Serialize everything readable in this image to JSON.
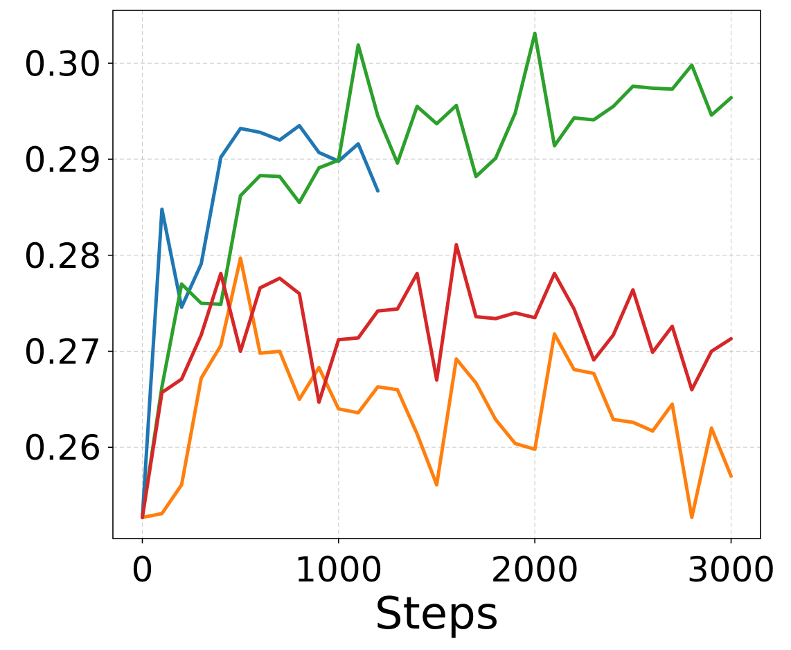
{
  "chart_data": {
    "type": "line",
    "title": "",
    "xlabel": "Steps",
    "ylabel": "",
    "xlim": [
      -150,
      3150
    ],
    "ylim": [
      0.2505,
      0.3055
    ],
    "x_ticks": [
      0,
      1000,
      2000,
      3000
    ],
    "x_tick_labels": [
      "0",
      "1000",
      "2000",
      "3000"
    ],
    "y_ticks": [
      0.26,
      0.27,
      0.28,
      0.29,
      0.3
    ],
    "y_tick_labels": [
      "0.26",
      "0.27",
      "0.28",
      "0.29",
      "0.30"
    ],
    "grid": true,
    "legend": "none",
    "series": [
      {
        "color": "#1f77b4",
        "x": [
          0,
          100,
          200,
          300,
          400,
          500,
          600,
          700,
          800,
          900,
          1000,
          1100,
          1200
        ],
        "y": [
          0.2527,
          0.2848,
          0.2746,
          0.2791,
          0.2902,
          0.2932,
          0.2928,
          0.292,
          0.2935,
          0.2907,
          0.2898,
          0.2916,
          0.2867
        ]
      },
      {
        "color": "#ff7f0e",
        "x": [
          0,
          100,
          200,
          300,
          400,
          500,
          600,
          700,
          800,
          900,
          1000,
          1100,
          1200,
          1300,
          1400,
          1500,
          1600,
          1700,
          1800,
          1900,
          2000,
          2100,
          2200,
          2300,
          2400,
          2500,
          2600,
          2700,
          2800,
          2900,
          3000
        ],
        "y": [
          0.2527,
          0.2531,
          0.2561,
          0.2672,
          0.2706,
          0.2797,
          0.2698,
          0.27,
          0.265,
          0.2683,
          0.264,
          0.2636,
          0.2663,
          0.266,
          0.2614,
          0.2561,
          0.2692,
          0.2667,
          0.2629,
          0.2604,
          0.2598,
          0.2718,
          0.2681,
          0.2677,
          0.2629,
          0.2626,
          0.2617,
          0.2645,
          0.2527,
          0.262,
          0.257
        ]
      },
      {
        "color": "#2ca02c",
        "x": [
          0,
          100,
          200,
          300,
          400,
          500,
          600,
          700,
          800,
          900,
          1000,
          1100,
          1200,
          1300,
          1400,
          1500,
          1600,
          1700,
          1800,
          1900,
          2000,
          2100,
          2200,
          2300,
          2400,
          2500,
          2600,
          2700,
          2800,
          2900,
          3000
        ],
        "y": [
          0.2527,
          0.2663,
          0.277,
          0.275,
          0.2749,
          0.2862,
          0.2883,
          0.2882,
          0.2855,
          0.2891,
          0.2899,
          0.3019,
          0.2945,
          0.2896,
          0.2955,
          0.2937,
          0.2956,
          0.2882,
          0.2901,
          0.2948,
          0.3031,
          0.2914,
          0.2943,
          0.2941,
          0.2955,
          0.2976,
          0.2974,
          0.2973,
          0.2998,
          0.2946,
          0.2964
        ]
      },
      {
        "color": "#d62728",
        "x": [
          0,
          100,
          200,
          300,
          400,
          500,
          600,
          700,
          800,
          900,
          1000,
          1100,
          1200,
          1300,
          1400,
          1500,
          1600,
          1700,
          1800,
          1900,
          2000,
          2100,
          2200,
          2300,
          2400,
          2500,
          2600,
          2700,
          2800,
          2900,
          3000
        ],
        "y": [
          0.2527,
          0.2657,
          0.2671,
          0.2717,
          0.2781,
          0.27,
          0.2766,
          0.2776,
          0.276,
          0.2647,
          0.2712,
          0.2714,
          0.2742,
          0.2744,
          0.2781,
          0.267,
          0.2811,
          0.2736,
          0.2734,
          0.274,
          0.2735,
          0.2781,
          0.2744,
          0.2691,
          0.2717,
          0.2764,
          0.2699,
          0.2726,
          0.266,
          0.27,
          0.2713
        ]
      }
    ]
  }
}
